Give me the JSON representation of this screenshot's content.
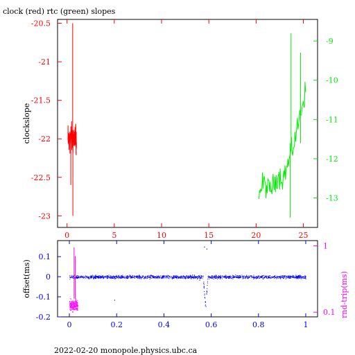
{
  "figure_title": "clock (red) rtc (green) slopes",
  "footer": "2022-02-20  monopole.physics.ubc.ca",
  "colors": {
    "clock": "#ff0000",
    "rtc": "#00ee00",
    "offset": "#0000ff",
    "roundtrip": "#ff00ff",
    "frame": "#000000"
  },
  "chart_data": [
    {
      "type": "line",
      "title": "clock (red) rtc (green) slopes",
      "ylabel": "clockslope",
      "xlim": [
        -1,
        26.5
      ],
      "ylim": [
        -23.15,
        -20.45
      ],
      "y2lim": [
        -13.75,
        -8.45
      ],
      "xticks": [
        0,
        5,
        10,
        15,
        20,
        25
      ],
      "yticks": [
        -20.5,
        -21,
        -21.5,
        -22,
        -22.5,
        -23
      ],
      "y2ticks": [
        -9,
        -10,
        -11,
        -12,
        -13
      ],
      "series": [
        {
          "name": "clock",
          "axis": "left",
          "x_range": [
            0.1,
            1.0
          ],
          "y_center": -22.0,
          "y_spread": 0.22,
          "spikes": [
            [
              0.6,
              -20.5
            ],
            [
              0.62,
              -23.0
            ],
            [
              0.4,
              -22.6
            ]
          ]
        },
        {
          "name": "rtc",
          "axis": "right",
          "x": [
            20.3,
            20.8,
            21.3,
            21.8,
            22.3,
            22.8,
            23.3,
            23.8,
            24.3,
            24.8,
            25.3
          ],
          "y": [
            -12.9,
            -12.6,
            -12.8,
            -12.7,
            -12.4,
            -12.5,
            -12.2,
            -11.8,
            -11.3,
            -10.7,
            -10.2
          ],
          "spikes": [
            [
              23.7,
              -8.8
            ],
            [
              23.6,
              -13.5
            ],
            [
              24.7,
              -9.3
            ]
          ]
        }
      ]
    },
    {
      "type": "scatter",
      "ylabel": "offset(ms)",
      "y2label": "rnd-trip(ms)",
      "xlim": [
        -0.05,
        1.05
      ],
      "ylim": [
        -0.2,
        0.18
      ],
      "y2lim": [
        0.085,
        1.2
      ],
      "y2scale": "log",
      "xticks": [
        0,
        0.2,
        0.4,
        0.6,
        0.8,
        1
      ],
      "yticks": [
        0.1,
        0,
        -0.1,
        -0.2
      ],
      "y2ticks": [
        1,
        0.1
      ],
      "series": [
        {
          "name": "offset",
          "axis": "left",
          "x_range": [
            0,
            1
          ],
          "y_center": 0.0,
          "y_spread": 0.012,
          "dip": {
            "x": 0.575,
            "y_min": -0.19
          },
          "outliers": [
            [
              0.57,
              0.15
            ],
            [
              0.58,
              0.14
            ],
            [
              0.19,
              -0.115
            ],
            [
              0.55,
              -0.015
            ]
          ]
        },
        {
          "name": "roundtrip",
          "axis": "right",
          "x_range": [
            0,
            0.035
          ],
          "y_center": 0.13,
          "y_spread": 0.035,
          "spikes": [
            [
              0.02,
              0.95
            ],
            [
              0.025,
              0.7
            ]
          ]
        }
      ]
    }
  ]
}
